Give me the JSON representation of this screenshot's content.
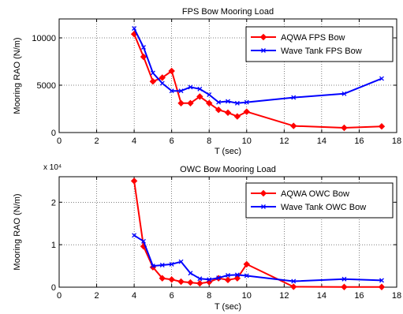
{
  "chart_data": [
    {
      "type": "line",
      "title": "FPS Bow Mooring Load",
      "xlabel": "T (sec)",
      "ylabel": "Mooring RAO (N/m)",
      "exponent_label": "",
      "xlim": [
        0,
        18
      ],
      "ylim": [
        0,
        12000
      ],
      "xticks": [
        0,
        2,
        4,
        6,
        8,
        10,
        12,
        14,
        16,
        18
      ],
      "yticks": [
        0,
        5000,
        10000
      ],
      "ytick_labels": [
        "0",
        "5000",
        "10000"
      ],
      "grid": true,
      "legend": "top-right",
      "series": [
        {
          "name": "AQWA FPS Bow",
          "color": "#ff0000",
          "marker": "diamond",
          "x": [
            4.0,
            4.5,
            5.0,
            5.5,
            6.0,
            6.5,
            7.0,
            7.5,
            8.0,
            8.5,
            9.0,
            9.5,
            10.0,
            12.5,
            15.2,
            17.2
          ],
          "y": [
            10400,
            8000,
            5400,
            5800,
            6500,
            3100,
            3100,
            3800,
            3100,
            2400,
            2100,
            1700,
            2200,
            700,
            500,
            650
          ]
        },
        {
          "name": "Wave Tank FPS Bow",
          "color": "#0000ff",
          "marker": "x",
          "x": [
            4.0,
            4.5,
            5.0,
            5.5,
            6.0,
            6.5,
            7.0,
            7.5,
            8.0,
            8.5,
            9.0,
            9.5,
            10.0,
            12.5,
            15.2,
            17.2
          ],
          "y": [
            11000,
            9000,
            6300,
            5200,
            4400,
            4400,
            4800,
            4600,
            4000,
            3200,
            3300,
            3100,
            3200,
            3700,
            4100,
            5700
          ]
        }
      ]
    },
    {
      "type": "line",
      "title": "OWC Bow Mooring Load",
      "xlabel": "T (sec)",
      "ylabel": "Mooring RAO (N/m)",
      "exponent_label": "x 10⁴",
      "xlim": [
        0,
        18
      ],
      "ylim": [
        0,
        26000
      ],
      "xticks": [
        0,
        2,
        4,
        6,
        8,
        10,
        12,
        14,
        16,
        18
      ],
      "yticks": [
        0,
        10000,
        20000
      ],
      "ytick_labels": [
        "0",
        "1",
        "2"
      ],
      "grid": true,
      "legend": "top-right",
      "series": [
        {
          "name": "AQWA OWC Bow",
          "color": "#ff0000",
          "marker": "diamond",
          "x": [
            4.0,
            4.5,
            5.0,
            5.5,
            6.0,
            6.5,
            7.0,
            7.5,
            8.0,
            8.5,
            9.0,
            9.5,
            10.0,
            12.5,
            15.2,
            17.2
          ],
          "y": [
            25000,
            9600,
            4700,
            2100,
            1800,
            1300,
            1100,
            900,
            1200,
            2100,
            1700,
            2100,
            5400,
            100,
            50,
            50
          ]
        },
        {
          "name": "Wave Tank OWC Bow",
          "color": "#0000ff",
          "marker": "x",
          "x": [
            4.0,
            4.5,
            5.0,
            5.5,
            6.0,
            6.5,
            7.0,
            7.5,
            8.0,
            8.5,
            9.0,
            9.5,
            10.0,
            12.5,
            15.2,
            17.2
          ],
          "y": [
            12200,
            10800,
            5000,
            5200,
            5400,
            6000,
            3300,
            2000,
            1800,
            2200,
            2800,
            2900,
            2700,
            1400,
            1900,
            1600
          ]
        }
      ]
    }
  ]
}
